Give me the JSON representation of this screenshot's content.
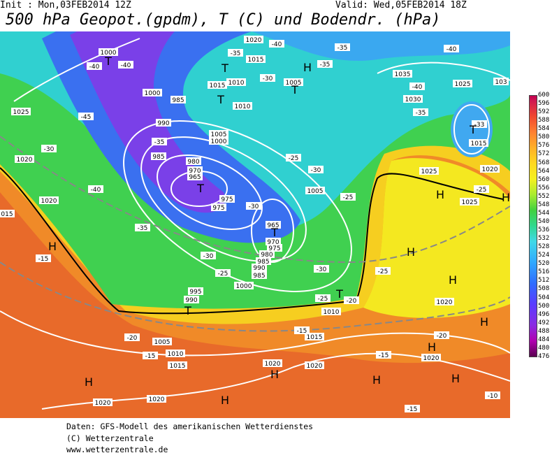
{
  "header": {
    "init": "Init : Mon,03FEB2014 12Z",
    "valid": "Valid: Wed,05FEB2014 18Z",
    "title": "500 hPa Geopot.(gpdm), T (C) und Bodendr. (hPa)"
  },
  "colorbar": {
    "labels": [
      "600",
      "596",
      "592",
      "588",
      "584",
      "580",
      "576",
      "572",
      "568",
      "564",
      "560",
      "556",
      "552",
      "548",
      "544",
      "540",
      "536",
      "532",
      "528",
      "524",
      "520",
      "516",
      "512",
      "508",
      "504",
      "500",
      "496",
      "492",
      "488",
      "484",
      "480",
      "476"
    ]
  },
  "map_labels": [
    "1000",
    "-40",
    "-40",
    "1000",
    "985",
    "-45",
    "990",
    "1025",
    "-35",
    "-30",
    "1020",
    "985",
    "980",
    "970",
    "965",
    "975",
    "975",
    "-40",
    "-35",
    "1005",
    "1000",
    "1015",
    "1010",
    "1010",
    "1015",
    "-35",
    "1020",
    "-40",
    "-30",
    "1005",
    "-25",
    "-30",
    "1005",
    "-30",
    "965",
    "970",
    "975",
    "980",
    "985",
    "990",
    "985",
    "-25",
    "1000",
    "-30",
    "-25",
    "-30",
    "-25",
    "-25",
    "-20",
    "1010",
    "995",
    "990",
    "-20",
    "1005",
    "-15",
    "1010",
    "1015",
    "1015",
    "-15",
    "1020",
    "1020",
    "-15",
    "1020",
    "-20",
    "1020",
    "1020",
    "1020",
    "-15",
    "-10",
    "1035",
    "-40",
    "1030",
    "-35",
    "-40",
    "1025",
    "1025",
    "1025",
    "-25",
    "1020",
    "1015",
    "-33",
    "-15",
    "1020",
    "015",
    "-35",
    "-35",
    "103"
  ],
  "pressure_symbols": [
    "H",
    "H",
    "H",
    "H",
    "H",
    "H",
    "H",
    "H",
    "H",
    "H",
    "H",
    "H",
    "H",
    "T",
    "T",
    "T",
    "T",
    "T",
    "T",
    "T",
    "T",
    "T"
  ],
  "footer": [
    "Daten: GFS-Modell des amerikanischen Wetterdienstes",
    "(C) Wetterzentrale",
    "www.wetterzentrale.de"
  ]
}
